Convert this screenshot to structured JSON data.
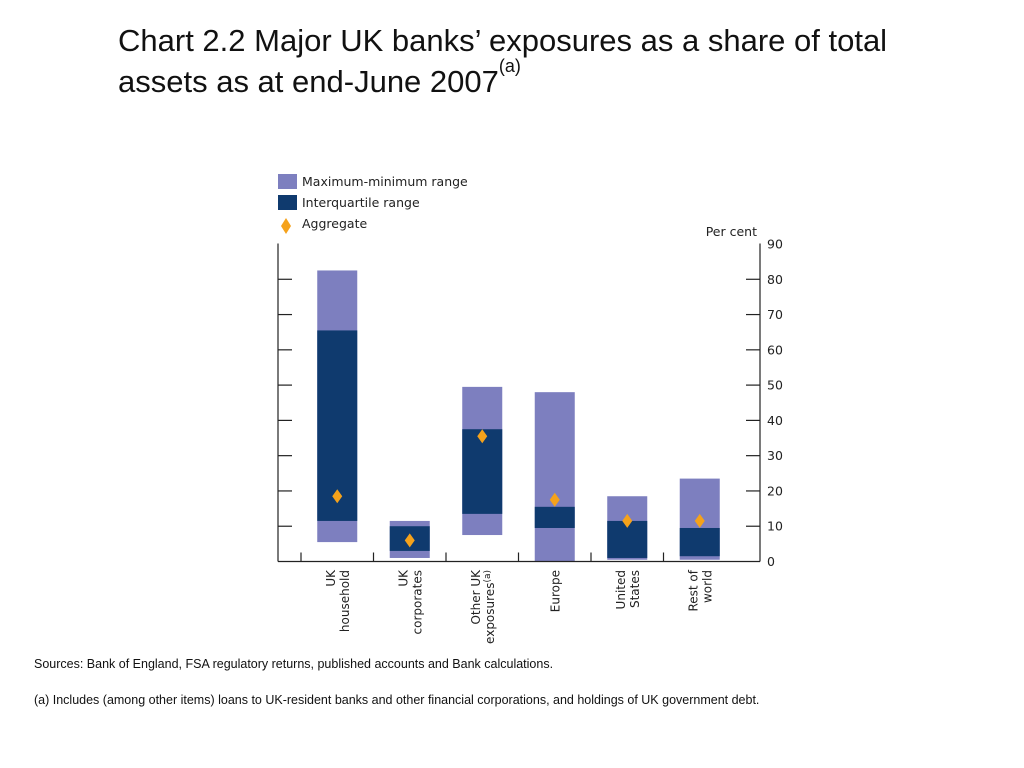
{
  "title": {
    "text": "Chart 2.2  Major UK banks’ exposures as a share of total assets as at end-June 2007",
    "sup": "(a)"
  },
  "sources": "Sources:  Bank of England, FSA regulatory returns, published accounts and Bank calculations.",
  "footnote": "(a)   Includes (among other items) loans to UK-resident banks and other financial corporations, and holdings of UK government debt.",
  "colors": {
    "range": "#7d7fbf",
    "iqr": "#0f3a6e",
    "aggregate": "#f5a21b",
    "axis": "#222222"
  },
  "chart_data": {
    "type": "bar",
    "ylabel": "Per cent",
    "ylim": [
      0,
      90
    ],
    "yticks": [
      0,
      10,
      20,
      30,
      40,
      50,
      60,
      70,
      80,
      90
    ],
    "legend": [
      {
        "key": "range",
        "label": "Maximum-minimum range"
      },
      {
        "key": "iqr",
        "label": "Interquartile range"
      },
      {
        "key": "aggregate",
        "label": "Aggregate"
      }
    ],
    "legend_position": "top-left",
    "categories": [
      {
        "lines": [
          "UK",
          "household"
        ],
        "min": 5.5,
        "q1": 11.5,
        "q3": 65.5,
        "max": 82.5,
        "aggregate": 18.5
      },
      {
        "lines": [
          "UK",
          "corporates"
        ],
        "min": 1,
        "q1": 3,
        "q3": 10,
        "max": 11.5,
        "aggregate": 6
      },
      {
        "lines": [
          "Other UK",
          "exposures(a)"
        ],
        "min": 7.5,
        "q1": 13.5,
        "q3": 37.5,
        "max": 49.5,
        "aggregate": 35.5
      },
      {
        "lines": [
          "Europe"
        ],
        "min": 0,
        "q1": 9.5,
        "q3": 15.5,
        "max": 48,
        "aggregate": 17.5
      },
      {
        "lines": [
          "United",
          "States"
        ],
        "min": 0.5,
        "q1": 1,
        "q3": 11.5,
        "max": 18.5,
        "aggregate": 11.5
      },
      {
        "lines": [
          "Rest of",
          "world"
        ],
        "min": 0.5,
        "q1": 1.5,
        "q3": 9.5,
        "max": 23.5,
        "aggregate": 11.5
      }
    ]
  }
}
